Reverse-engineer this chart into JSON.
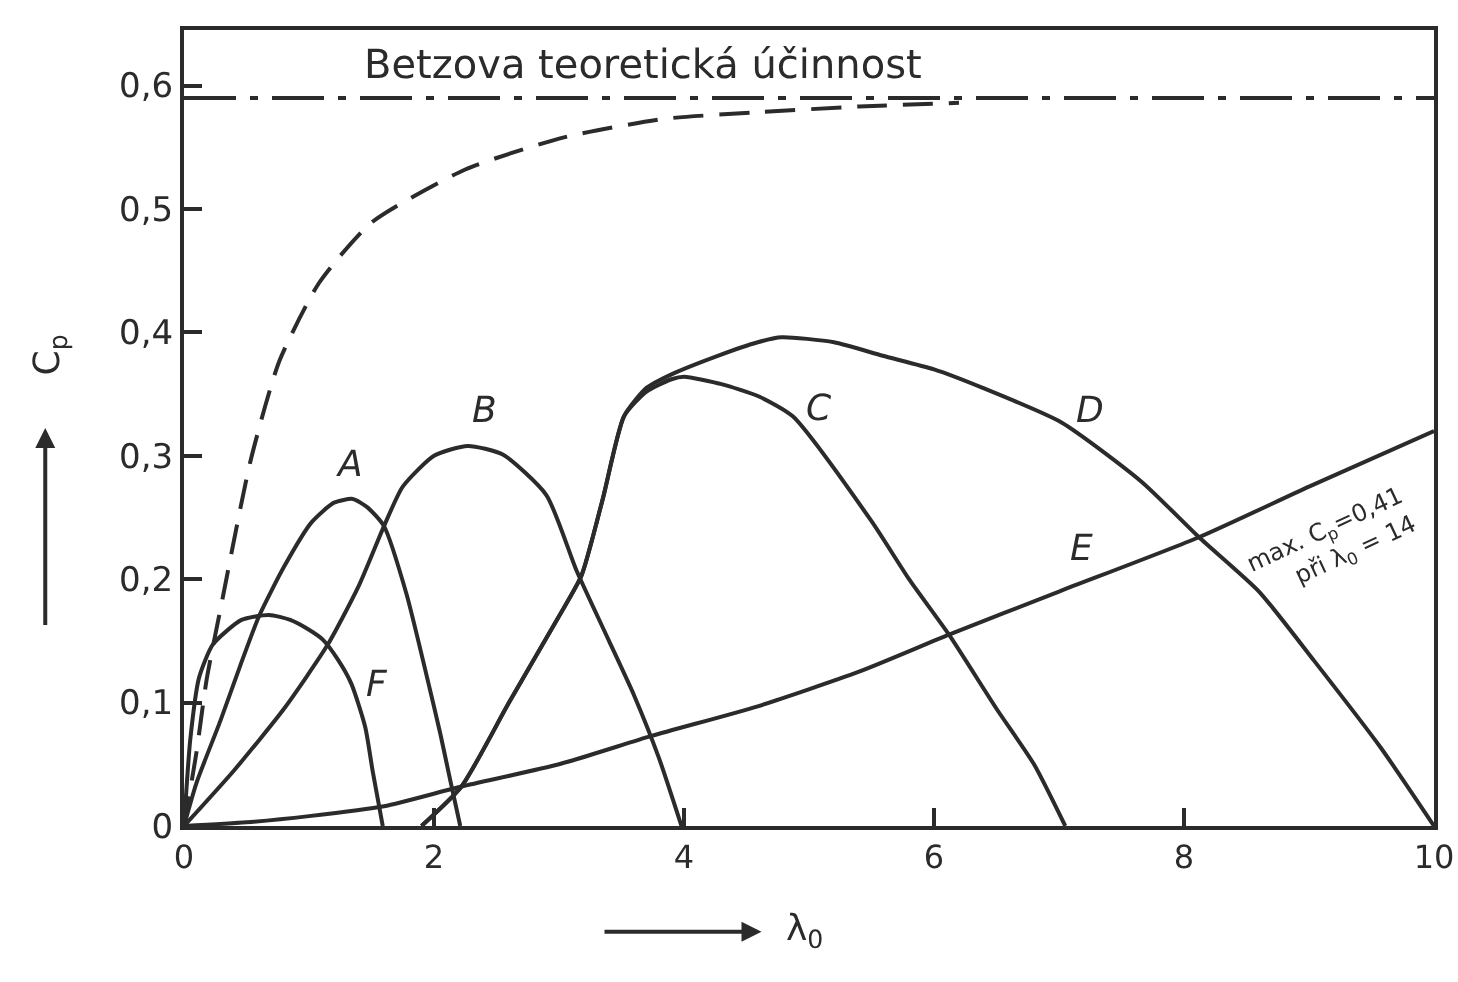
{
  "chart_data": {
    "type": "line",
    "xlabel": "λ$_{0}$",
    "ylabel": "C$_{p}$",
    "xlim": [
      0,
      10
    ],
    "xticks": [
      0,
      2,
      4,
      6,
      8,
      10
    ],
    "ylim": [
      0,
      0.645
    ],
    "yticks": [
      0,
      {
        "value": 0.1,
        "label": "0,1"
      },
      {
        "value": 0.2,
        "label": "0,2"
      },
      {
        "value": 0.3,
        "label": "0,3"
      },
      {
        "value": 0.4,
        "label": "0,4"
      },
      {
        "value": 0.5,
        "label": "0,5"
      },
      {
        "value": 0.6,
        "label": "0,6"
      }
    ],
    "series": [
      {
        "color": "#2b2b2b",
        "line_style": "dashed",
        "x": [
          0,
          0.1,
          0.18,
          0.3,
          0.53,
          0.76,
          1.08,
          1.5,
          2.25,
          3.04,
          3.84,
          4.54,
          5.4,
          6.2
        ],
        "values": [
          0,
          0.06,
          0.118,
          0.18,
          0.295,
          0.376,
          0.44,
          0.489,
          0.532,
          0.558,
          0.573,
          0.578,
          0.583,
          0.586
        ]
      },
      {
        "name": "A",
        "color": "#2b2b2b",
        "x": [
          0,
          0.1,
          0.29,
          0.45,
          0.6,
          0.8,
          1.02,
          1.2,
          1.35,
          1.47,
          1.6,
          1.78,
          1.95,
          2.05,
          2.13,
          2.21
        ],
        "values": [
          0,
          0.035,
          0.085,
          0.13,
          0.17,
          0.21,
          0.246,
          0.262,
          0.265,
          0.258,
          0.243,
          0.188,
          0.118,
          0.075,
          0.037,
          0
        ]
      },
      {
        "name": "B",
        "color": "#2b2b2b",
        "x": [
          0,
          0.4,
          0.8,
          1.15,
          1.4,
          1.6,
          1.75,
          2.0,
          2.27,
          2.55,
          2.9,
          3.14,
          3.4,
          3.6,
          3.8,
          3.98
        ],
        "values": [
          0,
          0.045,
          0.095,
          0.147,
          0.195,
          0.243,
          0.275,
          0.3,
          0.308,
          0.301,
          0.268,
          0.207,
          0.15,
          0.106,
          0.055,
          0
        ]
      },
      {
        "name": "C",
        "color": "#2b2b2b",
        "x": [
          1.9,
          2.22,
          2.6,
          3.0,
          3.18,
          3.35,
          3.52,
          3.7,
          3.9,
          4.0,
          4.3,
          4.6,
          4.87,
          5.5,
          5.8,
          6.12,
          6.5,
          6.8,
          7.05
        ],
        "values": [
          0,
          0.032,
          0.1,
          0.17,
          0.203,
          0.265,
          0.332,
          0.352,
          0.362,
          0.364,
          0.358,
          0.348,
          0.332,
          0.247,
          0.2,
          0.155,
          0.095,
          0.05,
          0
        ]
      },
      {
        "name": "D",
        "color": "#2b2b2b",
        "x": [
          1.9,
          2.22,
          2.6,
          3.0,
          3.18,
          3.35,
          3.52,
          3.7,
          3.9,
          4.27,
          4.59,
          4.78,
          5.2,
          5.59,
          6.0,
          6.39,
          7.02,
          7.66,
          8.12,
          8.6,
          9.04,
          9.57,
          10.0
        ],
        "values": [
          0,
          0.032,
          0.1,
          0.17,
          0.203,
          0.265,
          0.332,
          0.355,
          0.366,
          0.381,
          0.392,
          0.396,
          0.392,
          0.381,
          0.37,
          0.355,
          0.327,
          0.279,
          0.234,
          0.19,
          0.134,
          0.064,
          0
        ]
      },
      {
        "name": "E",
        "color": "#2b2b2b",
        "x": [
          0,
          0.5,
          1.0,
          1.6,
          2.22,
          3.0,
          3.74,
          4.59,
          5.4,
          6.12,
          7.0,
          8.12,
          9.0,
          10.0
        ],
        "values": [
          0,
          0.003,
          0.008,
          0.016,
          0.032,
          0.05,
          0.073,
          0.097,
          0.125,
          0.155,
          0.19,
          0.234,
          0.275,
          0.32
        ]
      },
      {
        "name": "F",
        "color": "#2b2b2b",
        "x": [
          0,
          0.05,
          0.12,
          0.23,
          0.46,
          0.68,
          0.85,
          1.0,
          1.11,
          1.23,
          1.34,
          1.45,
          1.51,
          1.59
        ],
        "values": [
          0,
          0.07,
          0.12,
          0.147,
          0.167,
          0.171,
          0.167,
          0.159,
          0.151,
          0.135,
          0.115,
          0.08,
          0.044,
          0
        ]
      }
    ],
    "ref_lines": [
      {
        "axis": "y",
        "value": 0.59,
        "label": "Betzova teoretická účinnost",
        "color": "#2b2b2b",
        "line_style": "dashdot"
      }
    ],
    "annotations": [
      "max. C$_{p}$=0,41\npři λ$_{0}$ = 14"
    ]
  }
}
